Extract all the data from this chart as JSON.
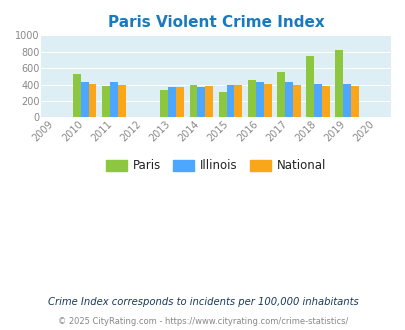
{
  "title": "Paris Violent Crime Index",
  "all_years": [
    2009,
    2010,
    2011,
    2012,
    2013,
    2014,
    2015,
    2016,
    2017,
    2018,
    2019,
    2020
  ],
  "data_years": [
    2010,
    2011,
    2013,
    2014,
    2015,
    2016,
    2017,
    2018,
    2019
  ],
  "paris": [
    535,
    378,
    335,
    395,
    310,
    460,
    555,
    745,
    820
  ],
  "illinois": [
    437,
    430,
    375,
    370,
    395,
    438,
    438,
    407,
    407
  ],
  "national": [
    407,
    393,
    370,
    378,
    395,
    402,
    400,
    383,
    378
  ],
  "paris_color": "#8dc63f",
  "illinois_color": "#4da6ff",
  "national_color": "#faa61a",
  "bg_color": "#ddeef5",
  "ylim": [
    0,
    1000
  ],
  "yticks": [
    0,
    200,
    400,
    600,
    800,
    1000
  ],
  "xlim_min": 2008.5,
  "xlim_max": 2020.5,
  "legend_labels": [
    "Paris",
    "Illinois",
    "National"
  ],
  "footnote1": "Crime Index corresponds to incidents per 100,000 inhabitants",
  "footnote2": "© 2025 CityRating.com - https://www.cityrating.com/crime-statistics/",
  "bar_width": 0.27,
  "title_color": "#1a7abf",
  "title_fontsize": 11,
  "footnote1_color": "#1a3a5c",
  "footnote2_color": "#888888",
  "tick_color": "#888888",
  "grid_color": "#ffffff"
}
